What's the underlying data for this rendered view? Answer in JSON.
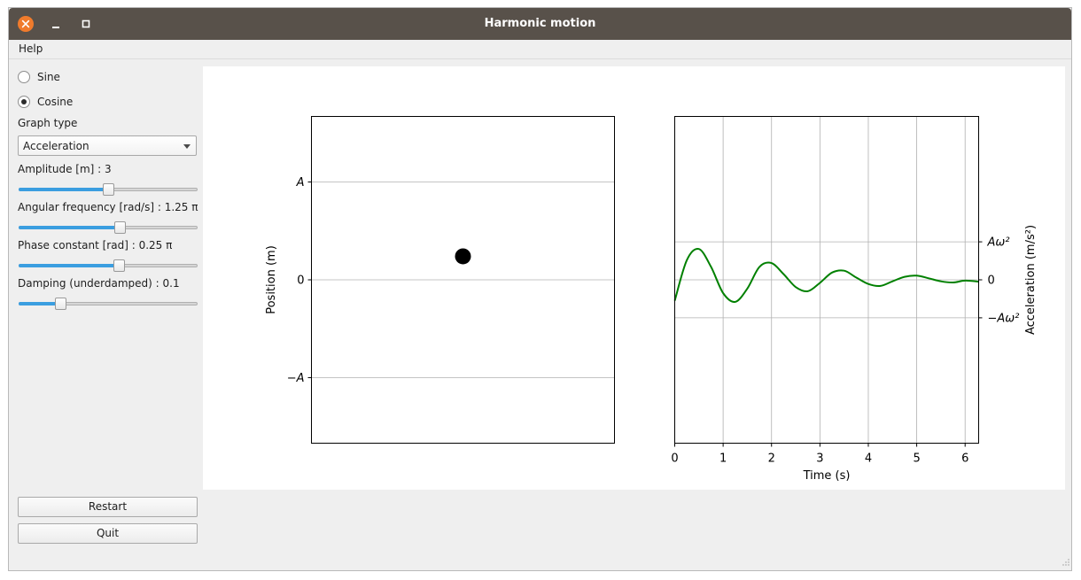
{
  "window": {
    "title": "Harmonic motion",
    "controls": [
      "close-icon",
      "minimize-icon",
      "maximize-icon"
    ],
    "close_color": "#f07b2c",
    "titlebar_color": "#58514a"
  },
  "menu": {
    "help": "Help"
  },
  "controls": {
    "function_options": [
      {
        "label": "Sine",
        "selected": false
      },
      {
        "label": "Cosine",
        "selected": true
      }
    ],
    "graph_type_label": "Graph type",
    "graph_type_value": "Acceleration",
    "sliders": [
      {
        "label": "Amplitude [m] : 3",
        "value_fraction": 0.5
      },
      {
        "label": "Angular frequency [rad/s] : 1.25 π",
        "value_fraction": 0.57
      },
      {
        "label": "Phase constant [rad] : 0.25 π",
        "value_fraction": 0.56
      },
      {
        "label": "Damping (underdamped) : 0.1",
        "value_fraction": 0.22
      }
    ],
    "slider_color": "#3b9ee0",
    "restart_label": "Restart",
    "quit_label": "Quit"
  },
  "chart_data": [
    {
      "type": "scatter",
      "ylabel": "Position (m)",
      "yticks": [
        "A",
        "0",
        "−A"
      ],
      "ytick_values": [
        1,
        0,
        -1
      ],
      "ylim": [
        -1.67,
        1.67
      ],
      "grid": "horizontal",
      "point": {
        "x": 0,
        "y": 0.24,
        "color": "#000000"
      }
    },
    {
      "type": "line",
      "xlabel": "Time (s)",
      "ylabel": "Acceleration (m/s²)",
      "xticks": [
        "0",
        "1",
        "2",
        "3",
        "4",
        "5",
        "6"
      ],
      "xlim": [
        0,
        6.28
      ],
      "ylim": [
        -4.3,
        4.3
      ],
      "yticks": [
        "Aω²",
        "0",
        "−Aω²"
      ],
      "ytick_values": [
        1,
        0,
        -1
      ],
      "grid": true,
      "line_color": "#008000",
      "series": [
        {
          "x": [
            0,
            0.25,
            0.5,
            0.75,
            1.0,
            1.25,
            1.5,
            1.75,
            2.0,
            2.25,
            2.5,
            2.75,
            3.0,
            3.25,
            3.5,
            3.75,
            4.0,
            4.25,
            4.5,
            4.75,
            5.0,
            5.25,
            5.5,
            5.75,
            6.0,
            6.28
          ],
          "y": [
            -0.55,
            0.52,
            0.81,
            0.34,
            -0.35,
            -0.58,
            -0.23,
            0.34,
            0.44,
            0.15,
            -0.19,
            -0.3,
            -0.08,
            0.19,
            0.24,
            0.06,
            -0.11,
            -0.16,
            -0.04,
            0.08,
            0.11,
            0.04,
            -0.04,
            -0.07,
            -0.02,
            -0.05
          ]
        }
      ]
    }
  ]
}
